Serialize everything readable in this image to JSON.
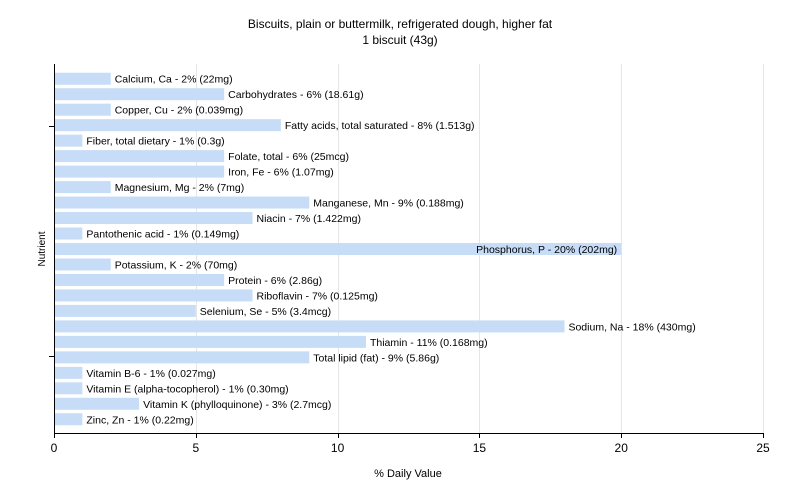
{
  "chart_data": {
    "type": "bar",
    "orientation": "horizontal",
    "title": "Biscuits, plain or buttermilk, refrigerated dough, higher fat",
    "subtitle": "1 biscuit (43g)",
    "xlabel": "% Daily Value",
    "ylabel": "Nutrient",
    "xlim": [
      0,
      25
    ],
    "xticks": [
      0,
      5,
      10,
      15,
      20,
      25
    ],
    "grid": true,
    "bar_color": "#c6dcf7",
    "categories": [
      "Calcium, Ca",
      "Carbohydrates",
      "Copper, Cu",
      "Fatty acids, total saturated",
      "Fiber, total dietary",
      "Folate, total",
      "Iron, Fe",
      "Magnesium, Mg",
      "Manganese, Mn",
      "Niacin",
      "Pantothenic acid",
      "Phosphorus, P",
      "Potassium, K",
      "Protein",
      "Riboflavin",
      "Selenium, Se",
      "Sodium, Na",
      "Thiamin",
      "Total lipid (fat)",
      "Vitamin B-6",
      "Vitamin E (alpha-tocopherol)",
      "Vitamin K (phylloquinone)",
      "Zinc, Zn"
    ],
    "values": [
      2,
      6,
      2,
      8,
      1,
      6,
      6,
      2,
      9,
      7,
      1,
      20,
      2,
      6,
      7,
      5,
      18,
      11,
      9,
      1,
      1,
      3,
      1
    ],
    "labels": [
      "Calcium, Ca - 2% (22mg)",
      "Carbohydrates - 6% (18.61g)",
      "Copper, Cu - 2% (0.039mg)",
      "Fatty acids, total saturated - 8% (1.513g)",
      "Fiber, total dietary - 1% (0.3g)",
      "Folate, total - 6% (25mcg)",
      "Iron, Fe - 6% (1.07mg)",
      "Magnesium, Mg - 2% (7mg)",
      "Manganese, Mn - 9% (0.188mg)",
      "Niacin - 7% (1.422mg)",
      "Pantothenic acid - 1% (0.149mg)",
      "Phosphorus, P - 20% (202mg)",
      "Potassium, K - 2% (70mg)",
      "Protein - 6% (2.86g)",
      "Riboflavin - 7% (0.125mg)",
      "Selenium, Se - 5% (3.4mcg)",
      "Sodium, Na - 18% (430mg)",
      "Thiamin - 11% (0.168mg)",
      "Total lipid (fat) - 9% (5.86g)",
      "Vitamin B-6 - 1% (0.027mg)",
      "Vitamin E (alpha-tocopherol) - 1% (0.30mg)",
      "Vitamin K (phylloquinone) - 3% (2.7mcg)",
      "Zinc, Zn - 1% (0.22mg)"
    ]
  }
}
